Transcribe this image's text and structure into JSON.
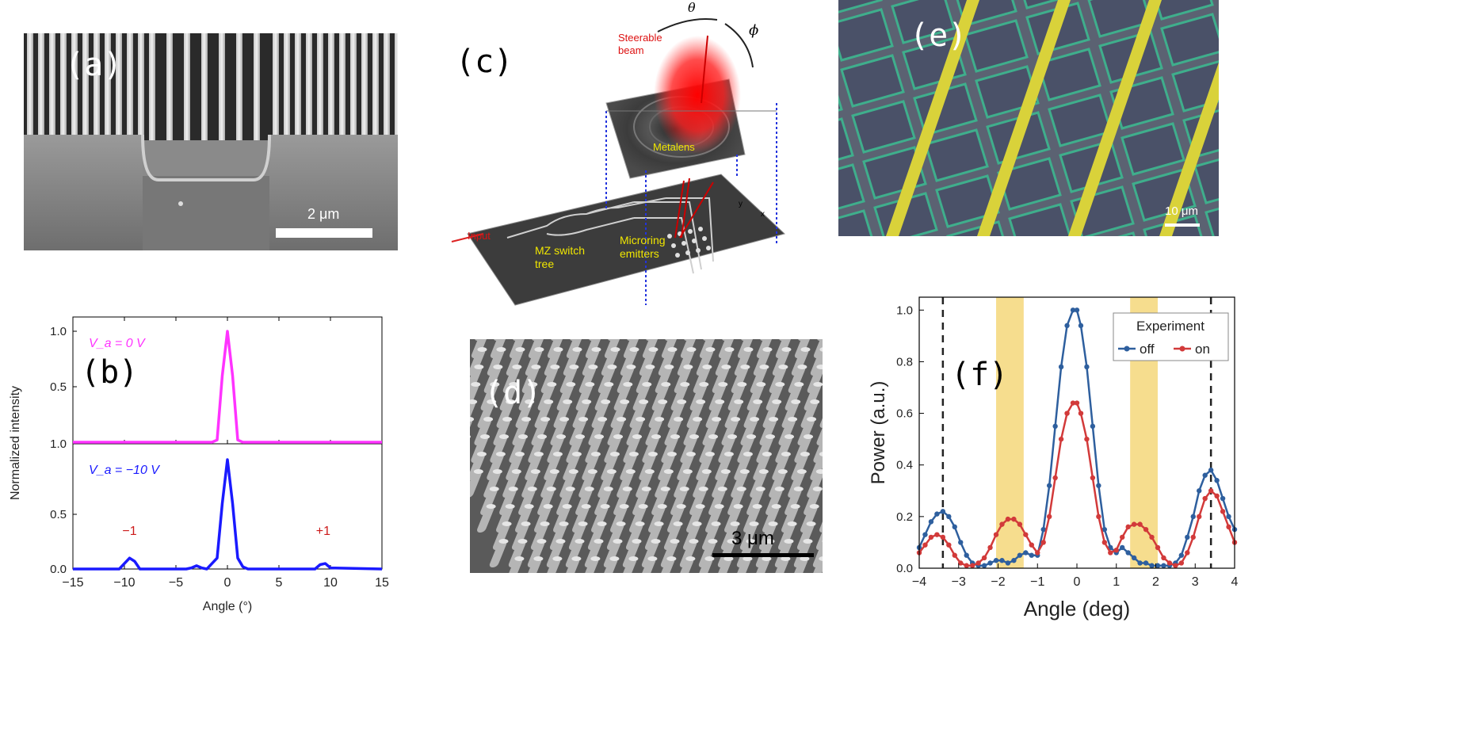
{
  "panels": {
    "a": {
      "label": "(a)",
      "scalebar": "2 μm"
    },
    "b": {
      "label": "(b)"
    },
    "c": {
      "label": "(c)",
      "beam": "Steerable\nbeam",
      "metalens": "Metalens",
      "theta": "θ",
      "phi": "ϕ",
      "input": "Input",
      "mz": "MZ switch\ntree",
      "microring": "Microring\nemitters",
      "axis_y": "y",
      "axis_x": "x"
    },
    "d": {
      "label": "(d)",
      "scalebar": "3 μm"
    },
    "e": {
      "label": "(e)",
      "scalebar": "10 μm"
    },
    "f": {
      "label": "(f)"
    }
  },
  "chart_data": [
    {
      "panel": "b",
      "type": "line",
      "xlabel": "Angle (°)",
      "ylabel": "Normalized intensity",
      "xlim": [
        -15,
        15
      ],
      "xticks": [
        -15,
        -10,
        -5,
        0,
        5,
        10,
        15
      ],
      "top_yticks": [
        "1.0",
        "0.5"
      ],
      "bottom_yticks": [
        "1.0",
        "0.5",
        "0.0"
      ],
      "colors": {
        "top": "#ff33ff",
        "bottom": "#1a1aff",
        "annot": "#cc1a1a"
      },
      "annotations": {
        "top": "V_a = 0 V",
        "bottom": "V_a = −10 V",
        "minus1": "−1",
        "plus1": "+1"
      },
      "series": [
        {
          "x": [
            -15,
            -1.5,
            -1,
            -0.5,
            0,
            0.5,
            1,
            1.5,
            15
          ],
          "values": [
            0,
            0,
            0.02,
            0.6,
            1.0,
            0.6,
            0.02,
            0,
            0
          ]
        },
        {
          "x": [
            -15,
            -10.5,
            -10,
            -9.5,
            -9,
            -8.5,
            -4,
            -3.5,
            -3,
            -2.5,
            -2,
            -1.5,
            -1,
            -0.5,
            0,
            0.5,
            1,
            1.5,
            2,
            8,
            8.5,
            9,
            9.5,
            10,
            15
          ],
          "values": [
            0,
            0,
            0.05,
            0.1,
            0.07,
            0,
            0,
            0.01,
            0.03,
            0.01,
            0,
            0.05,
            0.1,
            0.6,
            1.0,
            0.6,
            0.1,
            0.02,
            0,
            0,
            0,
            0.04,
            0.05,
            0.01,
            0
          ]
        }
      ]
    },
    {
      "panel": "f",
      "type": "line",
      "xlabel": "Angle (deg)",
      "ylabel": "Power (a.u.)",
      "xlim": [
        -4,
        4
      ],
      "ylim": [
        0,
        1.05
      ],
      "xticks": [
        -4,
        -3,
        -2,
        -1,
        0,
        1,
        2,
        3,
        4
      ],
      "yticks": [
        "0.0",
        "0.2",
        "0.4",
        "0.6",
        "0.8",
        "1.0"
      ],
      "legend_title": "Experiment",
      "legend_placement": "top-right",
      "dashed_lines": [
        -3.4,
        3.4
      ],
      "shaded_bands": [
        [
          -2.05,
          -1.35
        ],
        [
          1.35,
          2.05
        ]
      ],
      "band_color": "#f5d77a",
      "series": [
        {
          "name": "off",
          "color": "#2e5f9e",
          "x": [
            -4,
            -3.85,
            -3.7,
            -3.55,
            -3.4,
            -3.25,
            -3.1,
            -2.95,
            -2.8,
            -2.65,
            -2.5,
            -2.35,
            -2.2,
            -2.05,
            -1.9,
            -1.75,
            -1.6,
            -1.45,
            -1.3,
            -1.15,
            -1.0,
            -0.85,
            -0.7,
            -0.55,
            -0.4,
            -0.25,
            -0.1,
            0,
            0.1,
            0.25,
            0.4,
            0.55,
            0.7,
            0.85,
            1.0,
            1.15,
            1.3,
            1.45,
            1.6,
            1.75,
            1.9,
            2.05,
            2.2,
            2.35,
            2.5,
            2.65,
            2.8,
            2.95,
            3.1,
            3.25,
            3.4,
            3.55,
            3.7,
            3.85,
            4
          ],
          "values": [
            0.08,
            0.13,
            0.18,
            0.21,
            0.22,
            0.2,
            0.16,
            0.1,
            0.05,
            0.02,
            0.01,
            0.01,
            0.02,
            0.03,
            0.03,
            0.02,
            0.03,
            0.05,
            0.06,
            0.05,
            0.05,
            0.15,
            0.32,
            0.55,
            0.78,
            0.94,
            1.0,
            1.0,
            0.94,
            0.78,
            0.55,
            0.32,
            0.15,
            0.08,
            0.06,
            0.08,
            0.06,
            0.04,
            0.02,
            0.02,
            0.01,
            0.01,
            0.01,
            0.01,
            0.02,
            0.05,
            0.12,
            0.2,
            0.3,
            0.36,
            0.38,
            0.34,
            0.27,
            0.2,
            0.15
          ]
        },
        {
          "name": "on",
          "color": "#d23a3a",
          "x": [
            -4,
            -3.85,
            -3.7,
            -3.55,
            -3.4,
            -3.25,
            -3.1,
            -2.95,
            -2.8,
            -2.65,
            -2.5,
            -2.35,
            -2.2,
            -2.05,
            -1.9,
            -1.75,
            -1.6,
            -1.45,
            -1.3,
            -1.15,
            -1.0,
            -0.85,
            -0.7,
            -0.55,
            -0.4,
            -0.25,
            -0.1,
            0,
            0.1,
            0.25,
            0.4,
            0.55,
            0.7,
            0.85,
            1.0,
            1.15,
            1.3,
            1.45,
            1.6,
            1.75,
            1.9,
            2.05,
            2.2,
            2.35,
            2.5,
            2.65,
            2.8,
            2.95,
            3.1,
            3.25,
            3.4,
            3.55,
            3.7,
            3.85,
            4
          ],
          "values": [
            0.06,
            0.09,
            0.12,
            0.13,
            0.12,
            0.09,
            0.05,
            0.02,
            0.01,
            0.01,
            0.02,
            0.04,
            0.08,
            0.13,
            0.17,
            0.19,
            0.19,
            0.17,
            0.13,
            0.09,
            0.06,
            0.1,
            0.2,
            0.35,
            0.5,
            0.6,
            0.64,
            0.64,
            0.6,
            0.5,
            0.35,
            0.2,
            0.1,
            0.06,
            0.07,
            0.12,
            0.16,
            0.17,
            0.17,
            0.15,
            0.12,
            0.08,
            0.04,
            0.02,
            0.01,
            0.02,
            0.06,
            0.12,
            0.2,
            0.27,
            0.3,
            0.28,
            0.22,
            0.16,
            0.1
          ]
        }
      ]
    }
  ]
}
